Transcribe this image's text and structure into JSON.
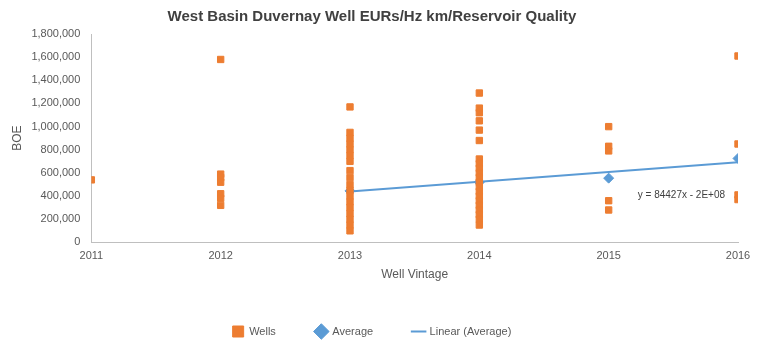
{
  "chart_data": {
    "type": "scatter",
    "title": "West Basin Duvernay Well EURs/Hz km/Reservoir Quality",
    "x_label": "Well Vintage",
    "y_label": "BOE",
    "xlim": [
      2011,
      2016
    ],
    "xticks": [
      2011,
      2012,
      2013,
      2014,
      2015,
      2016
    ],
    "ylim": [
      0,
      1800000
    ],
    "yticks": [
      0,
      {
        "value": 200000,
        "label": "200,000"
      },
      {
        "value": 400000,
        "label": "400,000"
      },
      {
        "value": 600000,
        "label": "600,000"
      },
      {
        "value": 800000,
        "label": "800,000"
      },
      {
        "value": 1000000,
        "label": "1,000,000"
      },
      {
        "value": 1200000,
        "label": "1,200,000"
      },
      {
        "value": 1400000,
        "label": "1,400,000"
      },
      {
        "value": 1600000,
        "label": "1,600,000"
      },
      {
        "value": 1800000,
        "label": "1,800,000"
      }
    ],
    "grid": false,
    "legend": "bottom",
    "annotations": [
      "y = 84427x - 2E+08"
    ],
    "series": [
      {
        "name": "Wells",
        "type": "scatter",
        "marker": "square",
        "color": "#ed7d31",
        "x": [
          2011,
          2012,
          2012,
          2012,
          2012,
          2012,
          2012,
          2012,
          2013,
          2013,
          2013,
          2013,
          2013,
          2013,
          2013,
          2013,
          2013,
          2013,
          2013,
          2013,
          2013,
          2013,
          2013,
          2013,
          2013,
          2013,
          2014,
          2014,
          2014,
          2014,
          2014,
          2014,
          2014,
          2014,
          2014,
          2014,
          2014,
          2014,
          2014,
          2014,
          2014,
          2014,
          2014,
          2014,
          2014,
          2014,
          2014,
          2015,
          2015,
          2015,
          2015,
          2015,
          2016,
          2016,
          2016,
          2016
        ],
        "values": [
          540000,
          1580000,
          590000,
          560000,
          520000,
          420000,
          380000,
          320000,
          1170000,
          950000,
          900000,
          850000,
          800000,
          750000,
          700000,
          620000,
          560000,
          500000,
          450000,
          400000,
          350000,
          300000,
          250000,
          200000,
          150000,
          100000,
          1290000,
          1160000,
          1120000,
          1050000,
          970000,
          880000,
          720000,
          680000,
          640000,
          600000,
          560000,
          520000,
          480000,
          440000,
          400000,
          360000,
          320000,
          280000,
          240000,
          200000,
          150000,
          1000000,
          830000,
          790000,
          360000,
          280000,
          1610000,
          850000,
          410000,
          370000
        ]
      },
      {
        "name": "Average",
        "type": "scatter",
        "marker": "diamond",
        "color": "#5b9bd5",
        "x": [
          2013,
          2014,
          2015,
          2016
        ],
        "values": [
          445000,
          520000,
          555000,
          725000
        ]
      },
      {
        "name": "Linear (Average)",
        "type": "line",
        "line_style": "solid",
        "marker": "none",
        "color": "#5b9bd5",
        "x": [
          2013,
          2016
        ],
        "values": [
          440000,
          693281
        ]
      }
    ]
  }
}
